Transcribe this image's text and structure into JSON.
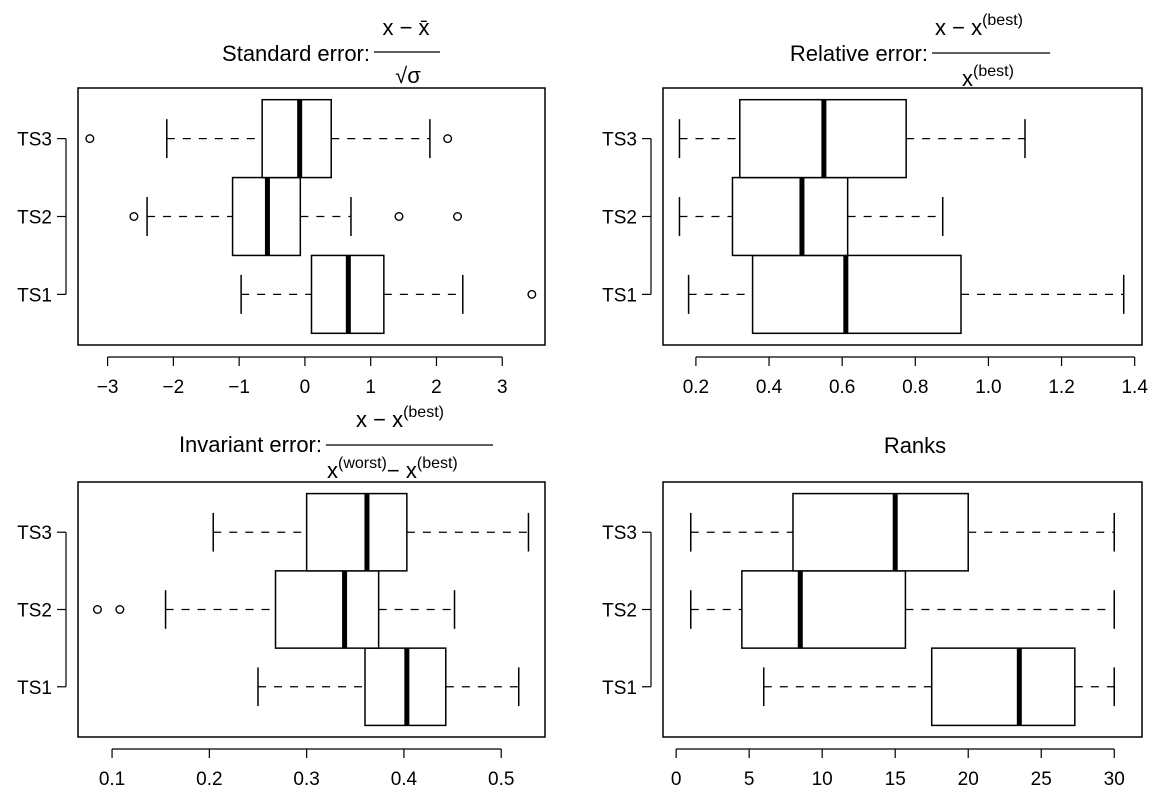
{
  "chart_data": [
    {
      "type": "boxplot",
      "title": {
        "prefix": "Standard error:",
        "numerator": "x − x̄",
        "denominator": "√σ"
      },
      "categories": [
        "TS1",
        "TS2",
        "TS3"
      ],
      "xlim": [
        -3.45,
        3.65
      ],
      "xticks": [
        -3,
        -2,
        -1,
        0,
        1,
        2,
        3
      ],
      "xtick_labels": [
        "−3",
        "−2",
        "−1",
        "0",
        "1",
        "2",
        "3"
      ],
      "boxes": [
        {
          "name": "TS1",
          "whisker_low": -0.97,
          "q1": 0.1,
          "median": 0.66,
          "q3": 1.2,
          "whisker_high": 2.4,
          "outliers": [
            3.45
          ]
        },
        {
          "name": "TS2",
          "whisker_low": -2.4,
          "q1": -1.1,
          "median": -0.57,
          "q3": -0.07,
          "whisker_high": 0.7,
          "outliers": [
            -2.6,
            1.43,
            2.32
          ]
        },
        {
          "name": "TS3",
          "whisker_low": -2.1,
          "q1": -0.65,
          "median": -0.08,
          "q3": 0.4,
          "whisker_high": 1.9,
          "outliers": [
            -3.27,
            2.17
          ]
        }
      ]
    },
    {
      "type": "boxplot",
      "title": {
        "prefix": "Relative error:",
        "numerator": "x − x",
        "numerator_sup": "(best)",
        "denominator": "x",
        "denominator_sup": "(best)"
      },
      "categories": [
        "TS1",
        "TS2",
        "TS3"
      ],
      "xlim": [
        0.11,
        1.42
      ],
      "xticks": [
        0.2,
        0.4,
        0.6,
        0.8,
        1.0,
        1.2,
        1.4
      ],
      "xtick_labels": [
        "0.2",
        "0.4",
        "0.6",
        "0.8",
        "1.0",
        "1.2",
        "1.4"
      ],
      "boxes": [
        {
          "name": "TS1",
          "whisker_low": 0.18,
          "q1": 0.355,
          "median": 0.61,
          "q3": 0.925,
          "whisker_high": 1.37,
          "outliers": []
        },
        {
          "name": "TS2",
          "whisker_low": 0.155,
          "q1": 0.3,
          "median": 0.49,
          "q3": 0.615,
          "whisker_high": 0.875,
          "outliers": []
        },
        {
          "name": "TS3",
          "whisker_low": 0.155,
          "q1": 0.32,
          "median": 0.55,
          "q3": 0.775,
          "whisker_high": 1.1,
          "outliers": []
        }
      ]
    },
    {
      "type": "boxplot",
      "title": {
        "prefix": "Invariant error:",
        "numerator": "x − x",
        "numerator_sup": "(best)",
        "denominator": "x",
        "denominator_sup": "(worst)",
        "denominator2": "− x",
        "denominator2_sup": "(best)"
      },
      "categories": [
        "TS1",
        "TS2",
        "TS3"
      ],
      "xlim": [
        0.065,
        0.545
      ],
      "xticks": [
        0.1,
        0.2,
        0.3,
        0.4,
        0.5
      ],
      "xtick_labels": [
        "0.1",
        "0.2",
        "0.3",
        "0.4",
        "0.5"
      ],
      "boxes": [
        {
          "name": "TS1",
          "whisker_low": 0.25,
          "q1": 0.36,
          "median": 0.403,
          "q3": 0.443,
          "whisker_high": 0.518,
          "outliers": []
        },
        {
          "name": "TS2",
          "whisker_low": 0.155,
          "q1": 0.268,
          "median": 0.339,
          "q3": 0.374,
          "whisker_high": 0.452,
          "outliers": [
            0.085,
            0.108
          ]
        },
        {
          "name": "TS3",
          "whisker_low": 0.204,
          "q1": 0.3,
          "median": 0.362,
          "q3": 0.403,
          "whisker_high": 0.528,
          "outliers": []
        }
      ]
    },
    {
      "type": "boxplot",
      "title": {
        "text": "Ranks"
      },
      "categories": [
        "TS1",
        "TS2",
        "TS3"
      ],
      "xlim": [
        -0.9,
        31.9
      ],
      "xticks": [
        0,
        5,
        10,
        15,
        20,
        25,
        30
      ],
      "xtick_labels": [
        "0",
        "5",
        "10",
        "15",
        "20",
        "25",
        "30"
      ],
      "boxes": [
        {
          "name": "TS1",
          "whisker_low": 6,
          "q1": 17.5,
          "median": 23.5,
          "q3": 27.3,
          "whisker_high": 30,
          "outliers": []
        },
        {
          "name": "TS2",
          "whisker_low": 1,
          "q1": 4.5,
          "median": 8.5,
          "q3": 15.7,
          "whisker_high": 30,
          "outliers": []
        },
        {
          "name": "TS3",
          "whisker_low": 1,
          "q1": 8,
          "median": 15,
          "q3": 20,
          "whisker_high": 30,
          "outliers": []
        }
      ]
    }
  ]
}
